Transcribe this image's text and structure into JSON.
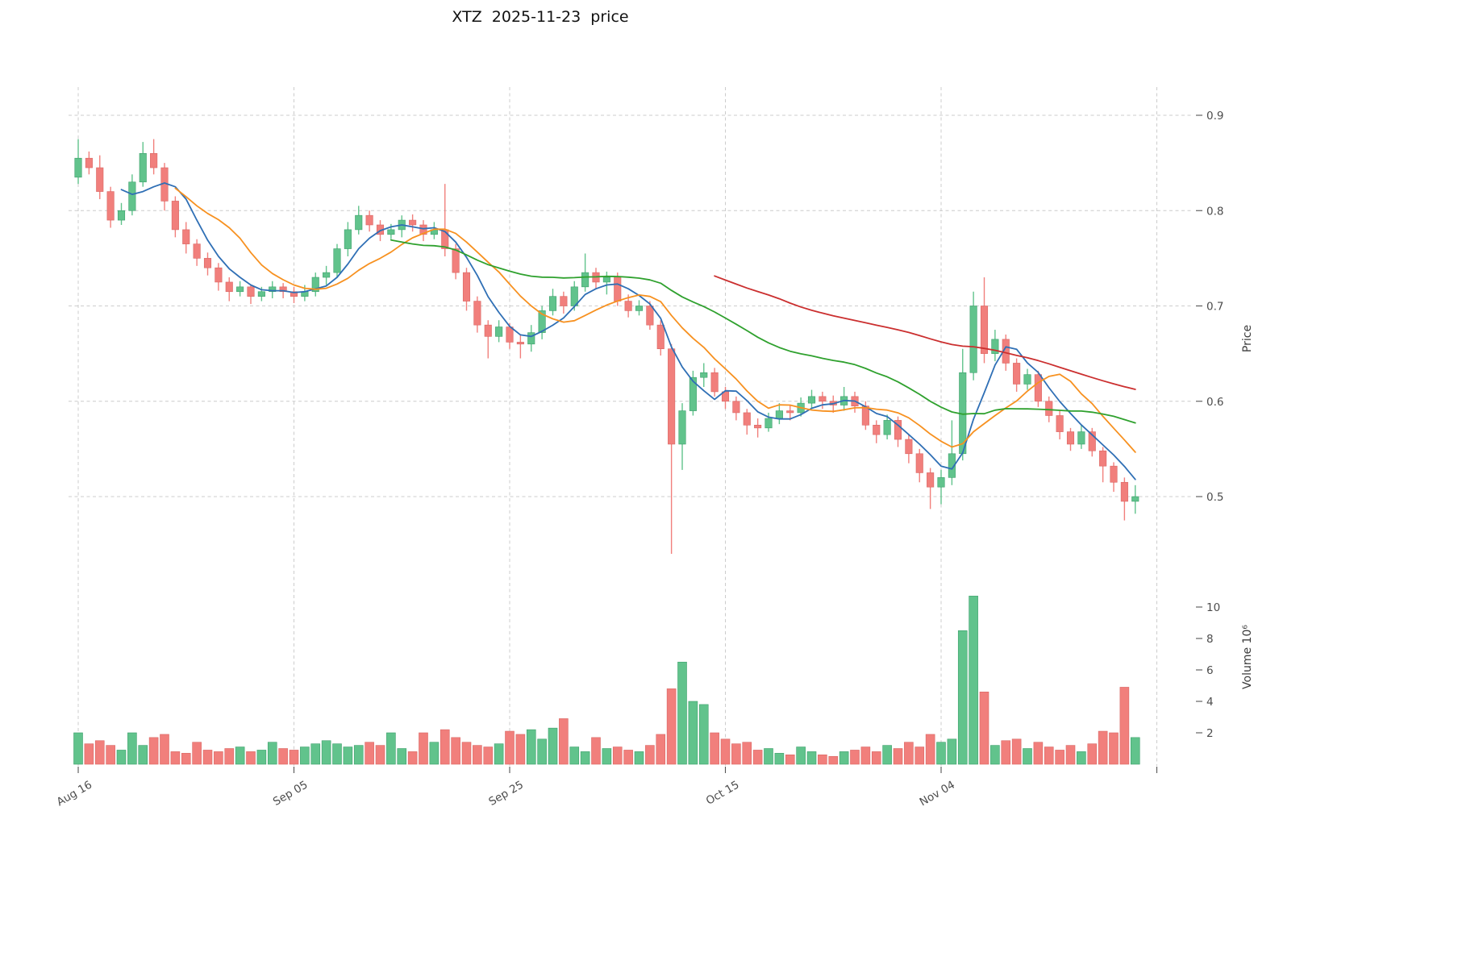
{
  "chart_data": {
    "type": "candlestick",
    "title": "XTZ  2025-11-23  price",
    "ylabel_price": "Price",
    "ylabel_volume": "Volume  10⁶",
    "legend_position": "none",
    "grid": "dashed",
    "price_ticks": [
      0.5,
      0.6,
      0.7,
      0.8,
      0.9
    ],
    "volume_ticks": [
      2,
      4,
      6,
      8,
      10
    ],
    "x_ticks": [
      {
        "day": 0,
        "label": "Aug 16"
      },
      {
        "day": 20,
        "label": "Sep 05"
      },
      {
        "day": 40,
        "label": "Sep 25"
      },
      {
        "day": 60,
        "label": "Oct 15"
      },
      {
        "day": 80,
        "label": "Nov 04"
      },
      {
        "day": 100,
        "label": ""
      }
    ],
    "price_range": [
      0.42,
      0.935
    ],
    "volume_max": 11.2,
    "colors": {
      "up": "#61c38c",
      "up_edge": "#3da06b",
      "down": "#f17f7c",
      "down_edge": "#d96663",
      "grid": "#cccccc",
      "tick_text": "#4c4c4c",
      "title_text": "#111111"
    },
    "moving_averages": [
      {
        "name": "ma-fast",
        "period": 5,
        "color": "#2f6fb5"
      },
      {
        "name": "ma-medium",
        "period": 10,
        "color": "#f79120"
      },
      {
        "name": "ma-slow",
        "period": 30,
        "color": "#2fa12e"
      },
      {
        "name": "ma-long",
        "period": 60,
        "color": "#cb2f2f"
      }
    ],
    "candles_format": [
      "open",
      "high",
      "low",
      "close",
      "volume_millions"
    ],
    "candles": [
      [
        0.835,
        0.875,
        0.828,
        0.855,
        2.0
      ],
      [
        0.855,
        0.862,
        0.838,
        0.845,
        1.3
      ],
      [
        0.845,
        0.858,
        0.812,
        0.82,
        1.5
      ],
      [
        0.82,
        0.825,
        0.782,
        0.79,
        1.2
      ],
      [
        0.79,
        0.808,
        0.785,
        0.8,
        0.9
      ],
      [
        0.8,
        0.838,
        0.795,
        0.83,
        2.0
      ],
      [
        0.83,
        0.872,
        0.825,
        0.86,
        1.2
      ],
      [
        0.86,
        0.875,
        0.838,
        0.845,
        1.7
      ],
      [
        0.845,
        0.85,
        0.8,
        0.81,
        1.9
      ],
      [
        0.81,
        0.815,
        0.772,
        0.78,
        0.8
      ],
      [
        0.78,
        0.788,
        0.755,
        0.765,
        0.7
      ],
      [
        0.765,
        0.77,
        0.742,
        0.75,
        1.4
      ],
      [
        0.75,
        0.756,
        0.732,
        0.74,
        0.9
      ],
      [
        0.74,
        0.745,
        0.716,
        0.725,
        0.8
      ],
      [
        0.725,
        0.73,
        0.705,
        0.715,
        1.0
      ],
      [
        0.715,
        0.726,
        0.71,
        0.72,
        1.1
      ],
      [
        0.72,
        0.722,
        0.702,
        0.71,
        0.8
      ],
      [
        0.71,
        0.72,
        0.705,
        0.715,
        0.9
      ],
      [
        0.715,
        0.726,
        0.708,
        0.72,
        1.4
      ],
      [
        0.72,
        0.724,
        0.708,
        0.715,
        1.0
      ],
      [
        0.715,
        0.72,
        0.703,
        0.71,
        0.9
      ],
      [
        0.71,
        0.722,
        0.705,
        0.715,
        1.1
      ],
      [
        0.715,
        0.735,
        0.71,
        0.73,
        1.3
      ],
      [
        0.73,
        0.742,
        0.722,
        0.735,
        1.5
      ],
      [
        0.735,
        0.765,
        0.73,
        0.76,
        1.3
      ],
      [
        0.76,
        0.788,
        0.752,
        0.78,
        1.1
      ],
      [
        0.78,
        0.805,
        0.775,
        0.795,
        1.2
      ],
      [
        0.795,
        0.8,
        0.778,
        0.785,
        1.4
      ],
      [
        0.785,
        0.79,
        0.768,
        0.775,
        1.2
      ],
      [
        0.775,
        0.786,
        0.77,
        0.78,
        2.0
      ],
      [
        0.78,
        0.795,
        0.772,
        0.79,
        1.0
      ],
      [
        0.79,
        0.796,
        0.778,
        0.785,
        0.8
      ],
      [
        0.785,
        0.79,
        0.768,
        0.775,
        2.0
      ],
      [
        0.775,
        0.788,
        0.77,
        0.78,
        1.4
      ],
      [
        0.78,
        0.828,
        0.752,
        0.76,
        2.2
      ],
      [
        0.76,
        0.765,
        0.728,
        0.735,
        1.7
      ],
      [
        0.735,
        0.74,
        0.695,
        0.705,
        1.4
      ],
      [
        0.705,
        0.71,
        0.672,
        0.68,
        1.2
      ],
      [
        0.68,
        0.685,
        0.645,
        0.668,
        1.1
      ],
      [
        0.668,
        0.685,
        0.662,
        0.678,
        1.3
      ],
      [
        0.678,
        0.682,
        0.655,
        0.662,
        2.1
      ],
      [
        0.662,
        0.67,
        0.645,
        0.66,
        1.9
      ],
      [
        0.66,
        0.68,
        0.652,
        0.672,
        2.2
      ],
      [
        0.672,
        0.7,
        0.665,
        0.695,
        1.6
      ],
      [
        0.695,
        0.718,
        0.69,
        0.71,
        2.3
      ],
      [
        0.71,
        0.715,
        0.692,
        0.7,
        2.9
      ],
      [
        0.7,
        0.726,
        0.695,
        0.72,
        1.1
      ],
      [
        0.72,
        0.755,
        0.715,
        0.735,
        0.8
      ],
      [
        0.735,
        0.74,
        0.718,
        0.725,
        1.7
      ],
      [
        0.725,
        0.736,
        0.712,
        0.73,
        1.0
      ],
      [
        0.73,
        0.735,
        0.7,
        0.705,
        1.1
      ],
      [
        0.705,
        0.712,
        0.688,
        0.695,
        0.9
      ],
      [
        0.695,
        0.706,
        0.69,
        0.7,
        0.8
      ],
      [
        0.7,
        0.705,
        0.675,
        0.68,
        1.2
      ],
      [
        0.68,
        0.685,
        0.648,
        0.655,
        1.9
      ],
      [
        0.655,
        0.66,
        0.44,
        0.555,
        4.8
      ],
      [
        0.555,
        0.598,
        0.528,
        0.59,
        6.5
      ],
      [
        0.59,
        0.632,
        0.585,
        0.625,
        4.0
      ],
      [
        0.625,
        0.64,
        0.615,
        0.63,
        3.8
      ],
      [
        0.63,
        0.635,
        0.605,
        0.61,
        2.0
      ],
      [
        0.61,
        0.615,
        0.592,
        0.6,
        1.6
      ],
      [
        0.6,
        0.605,
        0.58,
        0.588,
        1.3
      ],
      [
        0.588,
        0.592,
        0.565,
        0.575,
        1.4
      ],
      [
        0.575,
        0.582,
        0.562,
        0.572,
        0.9
      ],
      [
        0.572,
        0.588,
        0.568,
        0.582,
        1.0
      ],
      [
        0.582,
        0.598,
        0.576,
        0.59,
        0.7
      ],
      [
        0.59,
        0.596,
        0.58,
        0.588,
        0.6
      ],
      [
        0.588,
        0.604,
        0.584,
        0.598,
        1.1
      ],
      [
        0.598,
        0.612,
        0.592,
        0.605,
        0.8
      ],
      [
        0.605,
        0.61,
        0.592,
        0.6,
        0.6
      ],
      [
        0.6,
        0.606,
        0.588,
        0.596,
        0.5
      ],
      [
        0.596,
        0.615,
        0.59,
        0.605,
        0.8
      ],
      [
        0.605,
        0.61,
        0.588,
        0.595,
        0.9
      ],
      [
        0.595,
        0.6,
        0.57,
        0.575,
        1.1
      ],
      [
        0.575,
        0.58,
        0.556,
        0.565,
        0.8
      ],
      [
        0.565,
        0.586,
        0.56,
        0.58,
        1.2
      ],
      [
        0.58,
        0.584,
        0.552,
        0.56,
        1.0
      ],
      [
        0.56,
        0.565,
        0.535,
        0.545,
        1.4
      ],
      [
        0.545,
        0.55,
        0.515,
        0.525,
        1.1
      ],
      [
        0.525,
        0.53,
        0.487,
        0.51,
        1.9
      ],
      [
        0.51,
        0.528,
        0.492,
        0.52,
        1.4
      ],
      [
        0.52,
        0.58,
        0.512,
        0.545,
        1.6
      ],
      [
        0.545,
        0.655,
        0.538,
        0.63,
        8.5
      ],
      [
        0.63,
        0.715,
        0.622,
        0.7,
        10.7
      ],
      [
        0.7,
        0.73,
        0.64,
        0.65,
        4.6
      ],
      [
        0.65,
        0.675,
        0.642,
        0.665,
        1.2
      ],
      [
        0.665,
        0.67,
        0.632,
        0.64,
        1.5
      ],
      [
        0.64,
        0.645,
        0.61,
        0.618,
        1.6
      ],
      [
        0.618,
        0.634,
        0.612,
        0.628,
        1.0
      ],
      [
        0.628,
        0.632,
        0.594,
        0.6,
        1.4
      ],
      [
        0.6,
        0.605,
        0.578,
        0.585,
        1.1
      ],
      [
        0.585,
        0.59,
        0.56,
        0.568,
        0.9
      ],
      [
        0.568,
        0.572,
        0.548,
        0.555,
        1.2
      ],
      [
        0.555,
        0.575,
        0.55,
        0.568,
        0.8
      ],
      [
        0.568,
        0.572,
        0.542,
        0.548,
        1.3
      ],
      [
        0.548,
        0.552,
        0.515,
        0.532,
        2.1
      ],
      [
        0.532,
        0.536,
        0.505,
        0.515,
        2.0
      ],
      [
        0.515,
        0.52,
        0.475,
        0.495,
        4.9
      ],
      [
        0.495,
        0.512,
        0.482,
        0.5,
        1.7
      ]
    ]
  }
}
